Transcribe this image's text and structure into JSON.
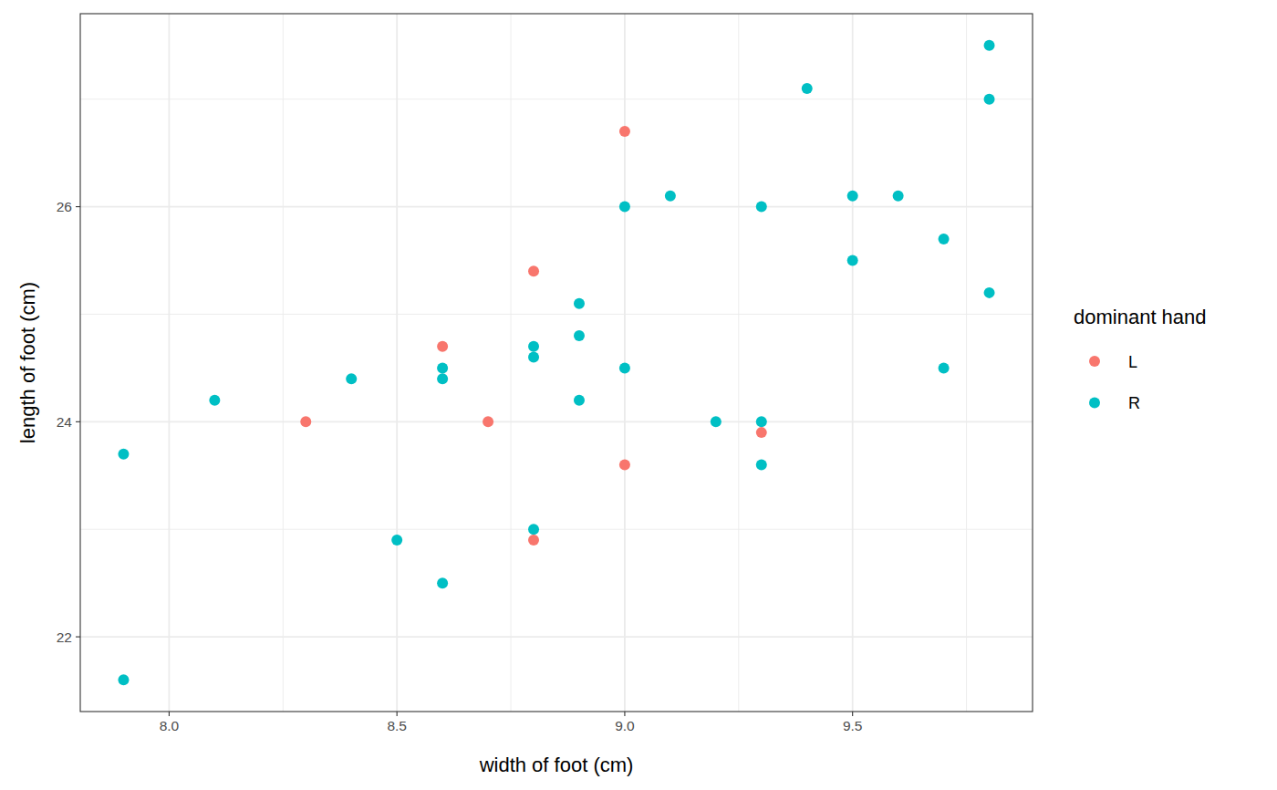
{
  "chart_data": {
    "type": "scatter",
    "x_label": "width of foot (cm)",
    "y_label": "length of foot (cm)",
    "legend_title": "dominant hand",
    "legend": "right",
    "grid": true,
    "xlim": [
      7.805,
      9.895
    ],
    "ylim": [
      21.305,
      27.795
    ],
    "xticks": [
      {
        "value": 8,
        "label": "8.0"
      },
      8.5,
      {
        "value": 9,
        "label": "9.0"
      },
      9.5
    ],
    "yticks": [
      22,
      24,
      26
    ],
    "series": [
      {
        "name": "L",
        "color": "#F8766D",
        "marker": "circle",
        "x": [
          8.3,
          8.6,
          8.7,
          8.8,
          8.8,
          9.0,
          9.0,
          9.3
        ],
        "values": [
          24.0,
          24.7,
          24.0,
          25.4,
          22.9,
          26.7,
          23.6,
          23.9
        ]
      },
      {
        "name": "R",
        "color": "#00BFC4",
        "marker": "circle",
        "x": [
          7.9,
          7.9,
          8.1,
          8.4,
          8.5,
          8.6,
          8.6,
          8.6,
          8.8,
          8.8,
          8.8,
          8.9,
          8.9,
          8.9,
          9.0,
          9.0,
          9.1,
          9.2,
          9.3,
          9.3,
          9.3,
          9.4,
          9.5,
          9.5,
          9.6,
          9.7,
          9.7,
          9.8,
          9.8,
          9.8
        ],
        "values": [
          23.7,
          21.6,
          24.2,
          24.4,
          22.9,
          24.5,
          24.4,
          22.5,
          24.7,
          24.6,
          23.0,
          25.1,
          24.8,
          24.2,
          26.0,
          24.5,
          26.1,
          24.0,
          26.0,
          24.0,
          23.6,
          27.1,
          26.1,
          25.5,
          26.1,
          25.7,
          24.5,
          27.5,
          27.0,
          25.2
        ]
      }
    ]
  }
}
